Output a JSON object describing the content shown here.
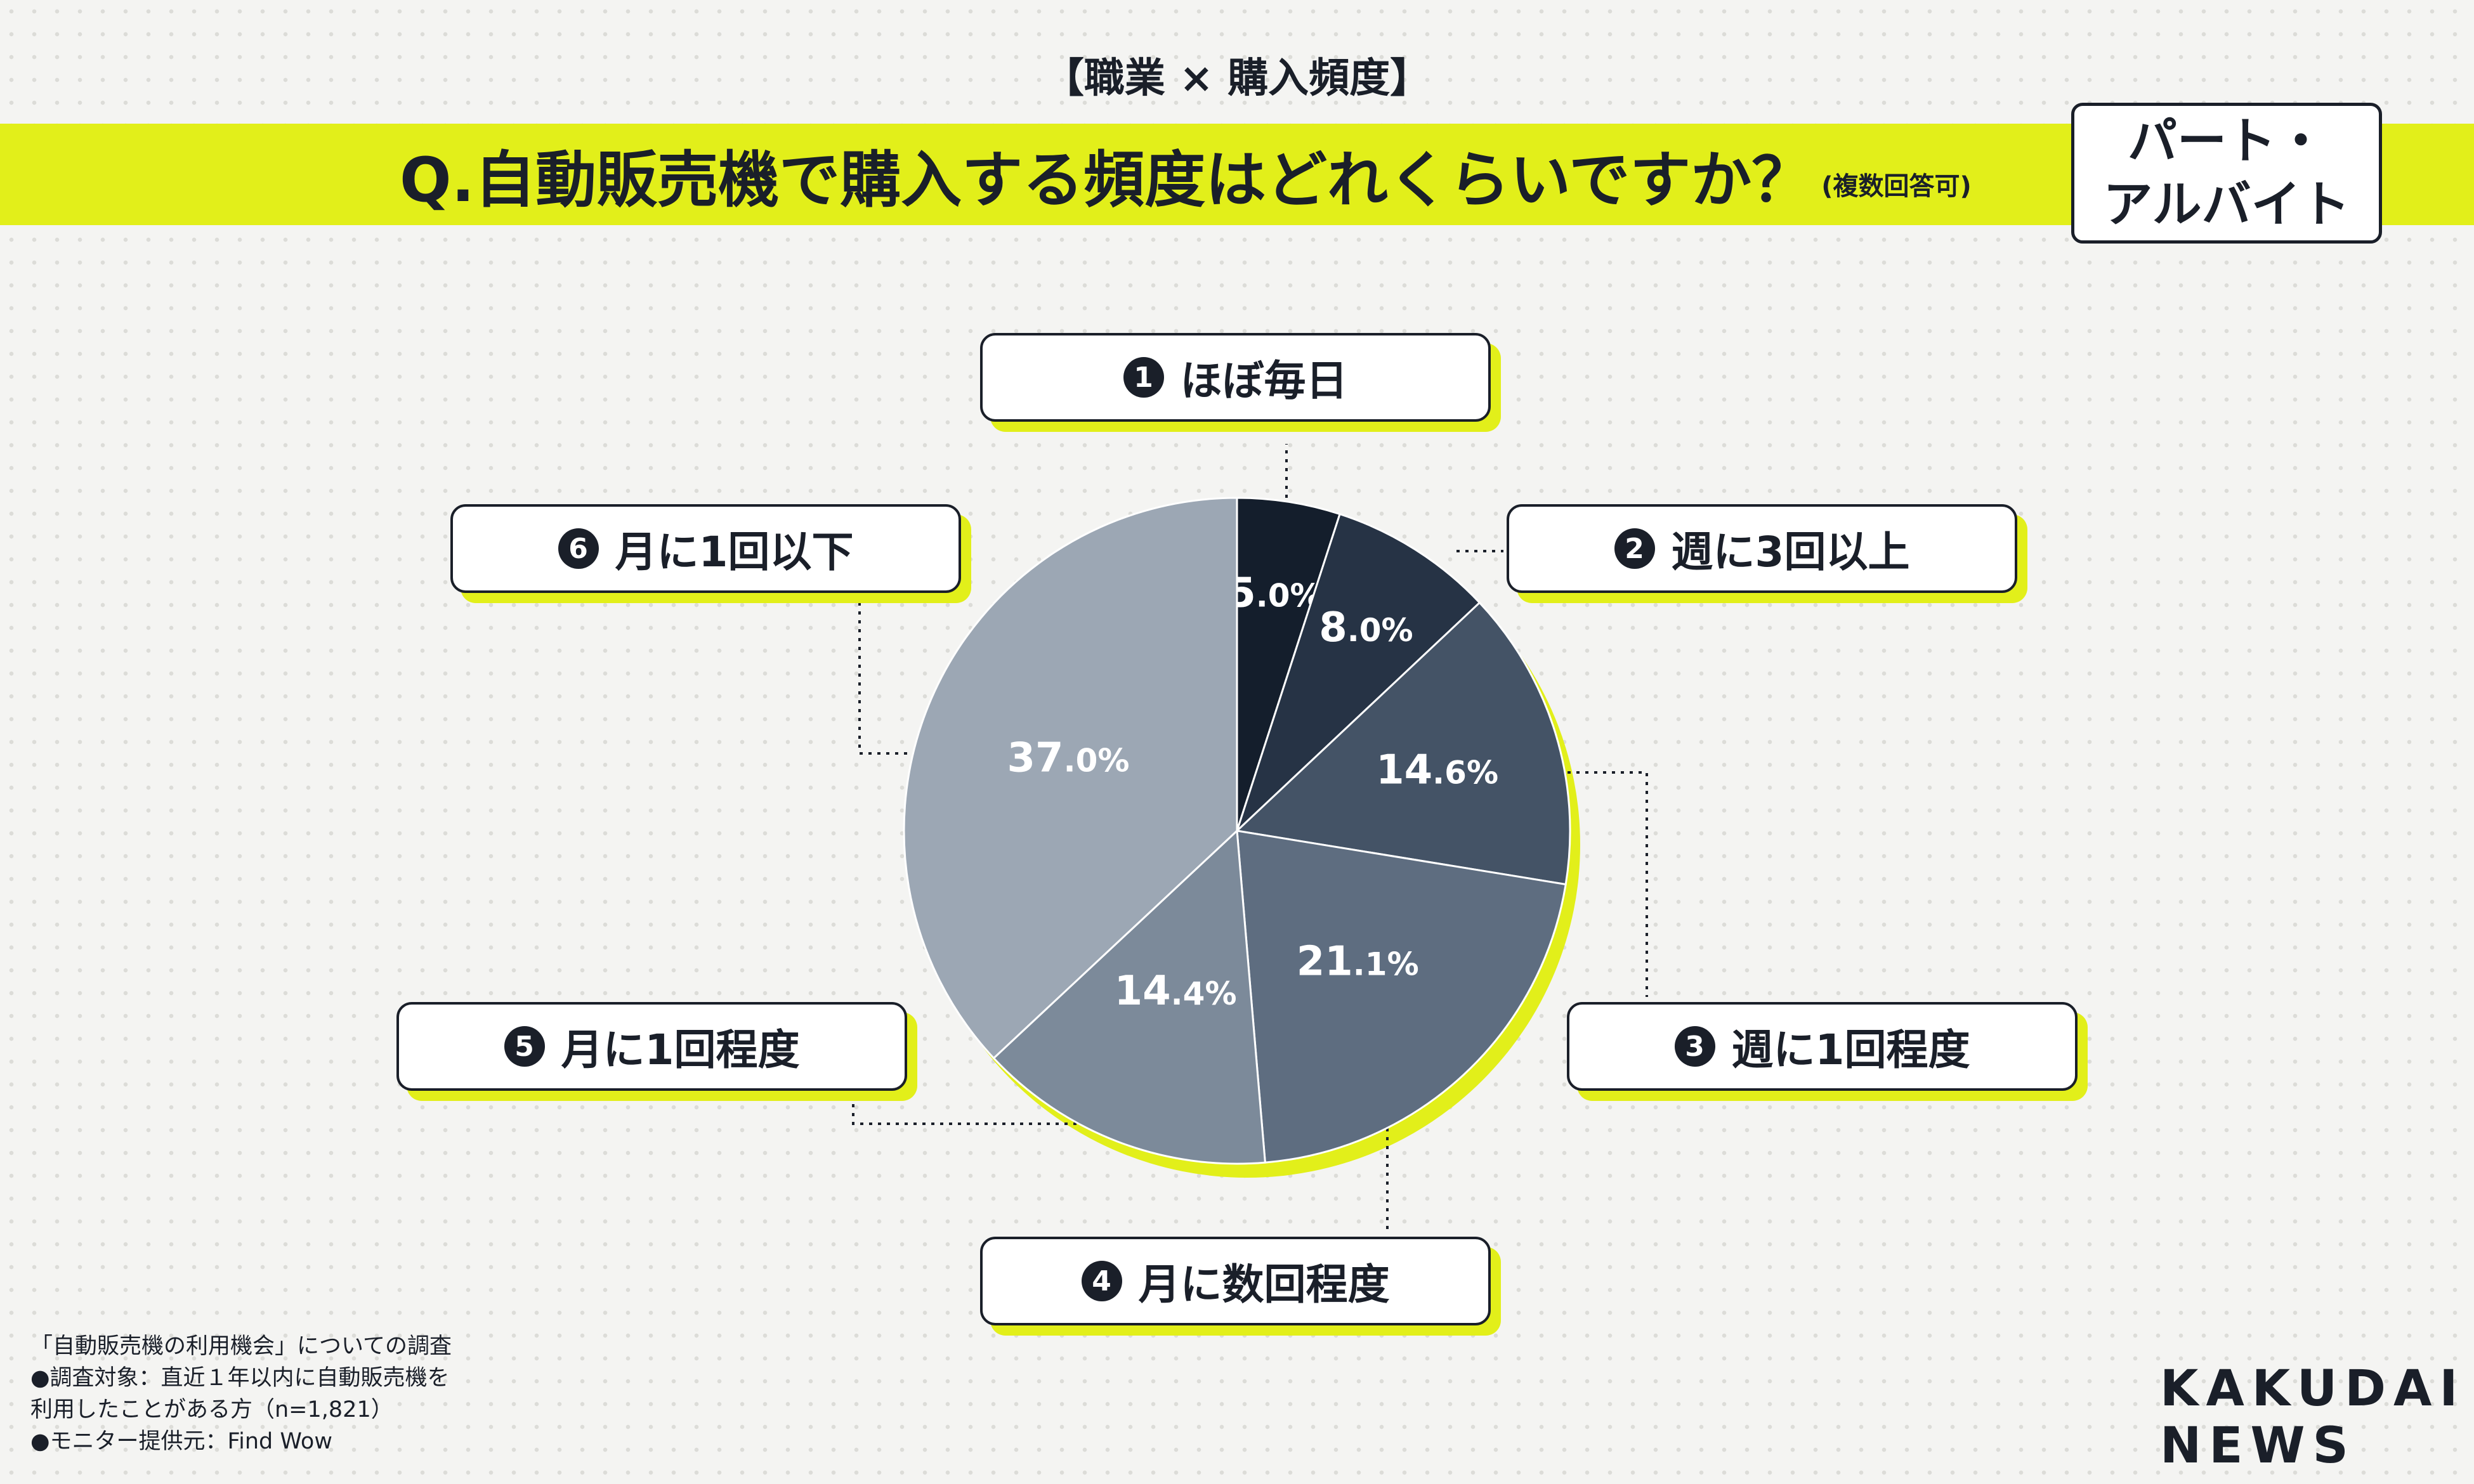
{
  "header": {
    "supertitle": "【職業 × 購入頻度】",
    "question": "Q.自動販売機で購入する頻度はどれくらいですか？",
    "question_note": "(複数回答可)",
    "badge_line1": "パート・",
    "badge_line2": "アルバイト"
  },
  "chart_data": {
    "type": "pie",
    "unit": "%",
    "slices": [
      {
        "number": "1",
        "label": "ほぼ毎日",
        "value": 5.0,
        "int": "5",
        "dec": ".0",
        "color": "#141e2c"
      },
      {
        "number": "2",
        "label": "週に3回以上",
        "value": 8.0,
        "int": "8",
        "dec": ".0",
        "color": "#263345"
      },
      {
        "number": "3",
        "label": "週に1回程度",
        "value": 14.6,
        "int": "14",
        "dec": ".6",
        "color": "#445366"
      },
      {
        "number": "4",
        "label": "月に数回程度",
        "value": 21.1,
        "int": "21",
        "dec": ".1",
        "color": "#5e6d80"
      },
      {
        "number": "5",
        "label": "月に1回程度",
        "value": 14.4,
        "int": "14",
        "dec": ".4",
        "color": "#7c8a9a"
      },
      {
        "number": "6",
        "label": "月に1回以下",
        "value": 37.0,
        "int": "37",
        "dec": ".0",
        "color": "#9ca7b4"
      }
    ],
    "accent_color": "#e2ef1a"
  },
  "footnote": {
    "line1": "「自動販売機の利用機会」についての調査",
    "line2": "●調査対象：直近１年以内に自動販売機を",
    "line3": "利用したことがある方（n=1,821）",
    "line4": "●モニター提供元：Find Wow"
  },
  "brand": {
    "line1": "KAKUDAI",
    "line2": "NEWS"
  }
}
